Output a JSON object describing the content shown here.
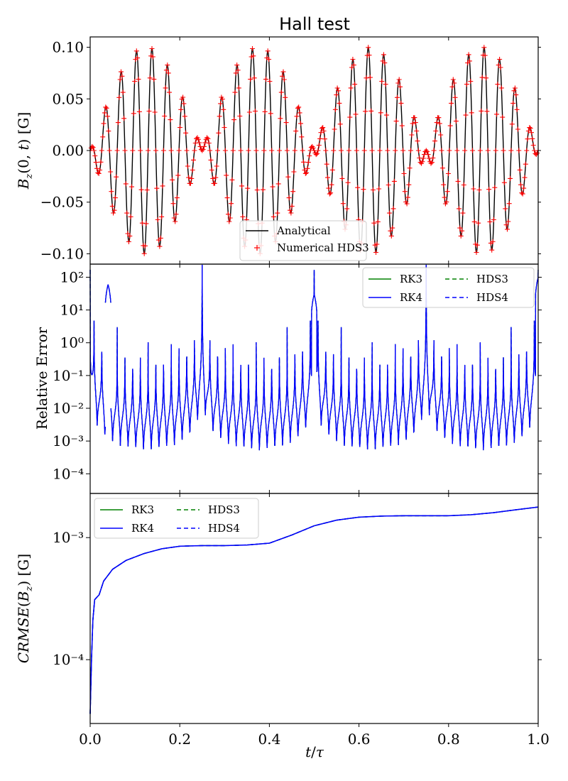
{
  "chart_data": [
    {
      "type": "line",
      "title": "Hall test",
      "xlabel": "t/τ",
      "ylabel": "Bz(0,t) [G]",
      "xlim": [
        0.0,
        1.0
      ],
      "ylim": [
        -0.11,
        0.11
      ],
      "yticks": [
        0.1,
        0.05,
        0.0,
        -0.05,
        -0.1
      ],
      "ytick_labels": [
        "0.10",
        "0.05",
        "0.00",
        "−0.05",
        "−0.10"
      ],
      "series": [
        {
          "name": "Analytical",
          "color": "#000000",
          "model": "0.1·sin(2π·2·t/τ)·cos(2π·29·t/τ)",
          "envelope_peak": 0.1,
          "envelope_beats": 2,
          "carrier_cycles": 29
        },
        {
          "name": "Numerical HDS3",
          "color": "#ff0000",
          "marker": "+",
          "samples_per_cycle": 16
        }
      ],
      "legend": {
        "position": "lower-center",
        "entries": [
          "Analytical",
          "Numerical HDS3"
        ]
      }
    },
    {
      "type": "line",
      "title": "",
      "ylabel": "Relative Error",
      "yscale": "log",
      "ylim_exp": [
        -4.6,
        2.4
      ],
      "ytick_labels": [
        "10²",
        "10¹",
        "10⁰",
        "10⁻¹",
        "10⁻²",
        "10⁻³",
        "10⁻⁴"
      ],
      "series": [
        {
          "name": "RK3",
          "color": "#008000",
          "style": "solid"
        },
        {
          "name": "RK4",
          "color": "#0000ff",
          "style": "solid"
        },
        {
          "name": "HDS3",
          "color": "#008000",
          "style": "dashed"
        },
        {
          "name": "HDS4",
          "color": "#0000ff",
          "style": "dashed"
        }
      ],
      "notable_spikes": [
        {
          "x": 0.04,
          "y": 60
        },
        {
          "x": 0.5,
          "y": 30
        },
        {
          "x": 1.0,
          "y": 100
        }
      ],
      "legend": {
        "position": "top-right",
        "columns": [
          [
            "RK3",
            "RK4"
          ],
          [
            "HDS3",
            "HDS4"
          ]
        ]
      }
    },
    {
      "type": "line",
      "title": "",
      "xlabel": "t/τ",
      "ylabel": "CRMSE(Bz) [G]",
      "yscale": "log",
      "ylim": [
        3e-05,
        0.0023
      ],
      "ytick_labels": [
        "10⁻³",
        "10⁻⁴"
      ],
      "xticks": [
        0.0,
        0.2,
        0.4,
        0.6,
        0.8,
        1.0
      ],
      "xtick_labels": [
        "0.0",
        "0.2",
        "0.4",
        "0.6",
        "0.8",
        "1.0"
      ],
      "series": [
        {
          "name": "RK3",
          "color": "#008000",
          "style": "solid"
        },
        {
          "name": "RK4",
          "color": "#0000ff",
          "style": "solid"
        },
        {
          "name": "HDS3",
          "color": "#008000",
          "style": "dashed"
        },
        {
          "name": "HDS4",
          "color": "#0000ff",
          "style": "dashed"
        }
      ],
      "points": [
        [
          0.0,
          3.6e-05
        ],
        [
          0.003,
          0.0001
        ],
        [
          0.006,
          0.00021
        ],
        [
          0.01,
          0.00031
        ],
        [
          0.02,
          0.00034
        ],
        [
          0.03,
          0.00044
        ],
        [
          0.05,
          0.00055
        ],
        [
          0.08,
          0.00065
        ],
        [
          0.12,
          0.00074
        ],
        [
          0.16,
          0.00081
        ],
        [
          0.2,
          0.00085
        ],
        [
          0.25,
          0.00086
        ],
        [
          0.3,
          0.00086
        ],
        [
          0.35,
          0.00087
        ],
        [
          0.4,
          0.0009
        ],
        [
          0.45,
          0.00105
        ],
        [
          0.5,
          0.00125
        ],
        [
          0.55,
          0.00139
        ],
        [
          0.6,
          0.00147
        ],
        [
          0.65,
          0.0015
        ],
        [
          0.7,
          0.00151
        ],
        [
          0.75,
          0.00151
        ],
        [
          0.8,
          0.00151
        ],
        [
          0.85,
          0.00154
        ],
        [
          0.9,
          0.0016
        ],
        [
          0.95,
          0.00169
        ],
        [
          1.0,
          0.00178
        ]
      ],
      "legend": {
        "position": "top-left",
        "columns": [
          [
            "RK3",
            "RK4"
          ],
          [
            "HDS3",
            "HDS4"
          ]
        ]
      }
    }
  ]
}
